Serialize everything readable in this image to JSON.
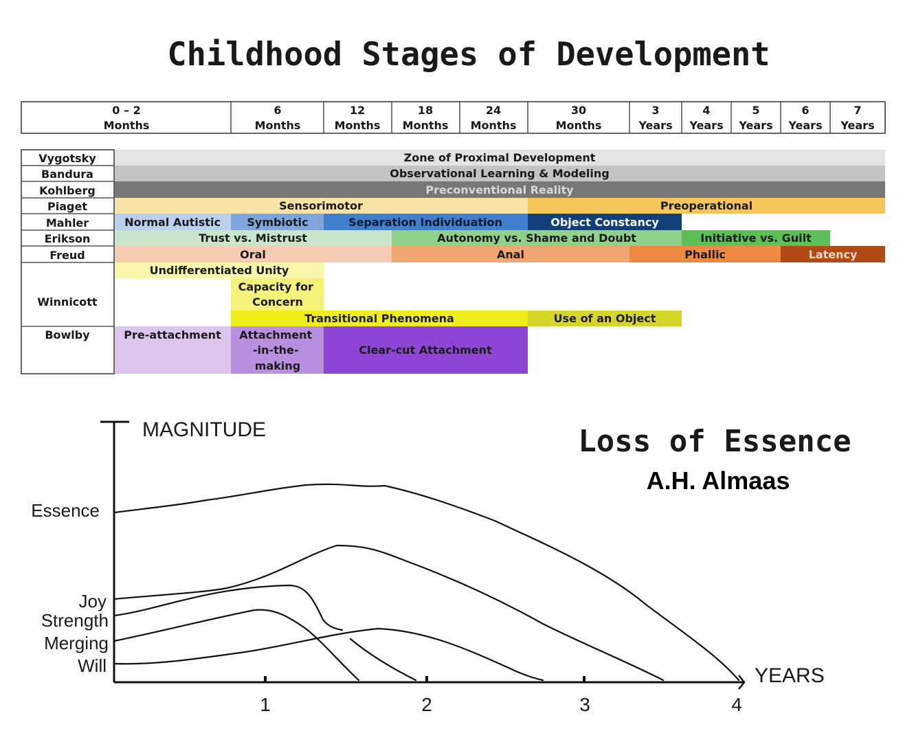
{
  "title": "Childhood Stages of Development",
  "timeline_header": [
    {
      "top": "0 – 2",
      "bottom": "Months"
    },
    {
      "top": "6",
      "bottom": "Months"
    },
    {
      "top": "12",
      "bottom": "Months"
    },
    {
      "top": "18",
      "bottom": "Months"
    },
    {
      "top": "24",
      "bottom": "Months"
    },
    {
      "top": "30",
      "bottom": "Months"
    },
    {
      "top": "3",
      "bottom": "Years"
    },
    {
      "top": "4",
      "bottom": "Years"
    },
    {
      "top": "5",
      "bottom": "Years"
    },
    {
      "top": "6",
      "bottom": "Years"
    },
    {
      "top": "7",
      "bottom": "Years"
    }
  ],
  "theorists": [
    "Vygotsky",
    "Bandura",
    "Kohlberg",
    "Piaget",
    "Mahler",
    "Erikson",
    "Freud",
    "Winnicott",
    "Bowlby"
  ],
  "stages": [
    {
      "theorist": "Vygotsky",
      "label": "Zone of Proximal Development",
      "color": "#e3e3e3",
      "text_color": "#1a1a1a"
    },
    {
      "theorist": "Bandura",
      "label": "Observational Learning & Modeling",
      "color": "#c4c4c4",
      "text_color": "#1a1a1a"
    },
    {
      "theorist": "Kohlberg",
      "label": "Preconventional Reality",
      "color": "#777777",
      "text_color": "#d8d8d8"
    },
    {
      "theorist": "Piaget",
      "label": "Sensorimotor",
      "color": "#f8e3a6",
      "text_color": "#1a1a1a"
    },
    {
      "theorist": "Piaget",
      "label": "Preoperational",
      "color": "#f6c658",
      "text_color": "#1a1a1a"
    },
    {
      "theorist": "Mahler",
      "label": "Normal Autistic",
      "color": "#b9d1ee",
      "text_color": "#1a1a1a"
    },
    {
      "theorist": "Mahler",
      "label": "Symbiotic",
      "color": "#7ea6dc",
      "text_color": "#1a1a1a"
    },
    {
      "theorist": "Mahler",
      "label": "Separation Individuation",
      "color": "#3f7fcc",
      "text_color": "#0d1a33"
    },
    {
      "theorist": "Mahler",
      "label": "Object Constancy",
      "color": "#123f7a",
      "text_color": "#ffffff"
    },
    {
      "theorist": "Erikson",
      "label": "Trust vs. Mistrust",
      "color": "#c9e6cc",
      "text_color": "#1a1a1a"
    },
    {
      "theorist": "Erikson",
      "label": "Autonomy vs. Shame and Doubt",
      "color": "#8fd08d",
      "text_color": "#1a1a1a"
    },
    {
      "theorist": "Erikson",
      "label": "Initiative vs. Guilt",
      "color": "#5cbf57",
      "text_color": "#1a1a1a"
    },
    {
      "theorist": "Freud",
      "label": "Oral",
      "color": "#f6cdb4",
      "text_color": "#1a1a1a"
    },
    {
      "theorist": "Freud",
      "label": "Anal",
      "color": "#f1a671",
      "text_color": "#1a1a1a"
    },
    {
      "theorist": "Freud",
      "label": "Phallic",
      "color": "#ec8a44",
      "text_color": "#1a1a1a"
    },
    {
      "theorist": "Freud",
      "label": "Latency",
      "color": "#b14b16",
      "text_color": "#f2d8c6"
    },
    {
      "theorist": "Winnicott",
      "label": "Undifferentiated Unity",
      "color": "#f7f6a9",
      "text_color": "#1a1a1a"
    },
    {
      "theorist": "Winnicott",
      "label": "Capacity for Concern",
      "color": "#f4f278",
      "text_color": "#1a1a1a"
    },
    {
      "theorist": "Winnicott",
      "label": "Transitional Phenomena",
      "color": "#efee1a",
      "text_color": "#1a1a1a"
    },
    {
      "theorist": "Winnicott",
      "label": "Use of an Object",
      "color": "#d6d62a",
      "text_color": "#1a1a1a"
    },
    {
      "theorist": "Bowlby",
      "label": "Pre-attachment",
      "color": "#dcc6ee",
      "text_color": "#1a1a1a"
    },
    {
      "theorist": "Bowlby",
      "label": "Attachment -in-the- making",
      "color": "#b98fe0",
      "text_color": "#1a1a1a"
    },
    {
      "theorist": "Bowlby",
      "label": "Clear-cut Attachment",
      "color": "#8e45d6",
      "text_color": "#1a1a1a"
    }
  ],
  "essence_graph": {
    "title": "Loss of Essence",
    "author": "A.H. Almaas",
    "y_axis_label": "MAGNITUDE",
    "x_axis_label": "YEARS",
    "x_ticks": [
      "1",
      "2",
      "3",
      "4"
    ],
    "series_labels": [
      "Essence",
      "Joy",
      "Strength",
      "Merging",
      "Will"
    ]
  }
}
